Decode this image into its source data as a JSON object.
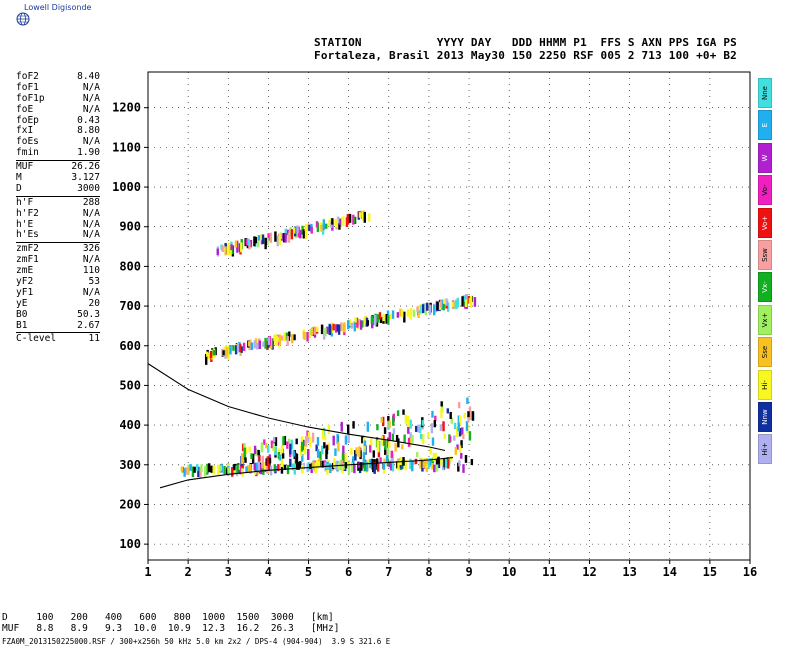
{
  "header": {
    "logo_text": "Lowell Digisonde",
    "line1": "STATION           YYYY DAY   DDD HHMM P1  FFS S AXN PPS IGA PS",
    "line2": "Fortaleza, Brasil 2013 May30 150 2250 RSF 005 2 713 100 +0+ B2"
  },
  "params": {
    "group1": [
      {
        "label": "foF2",
        "value": "8.40"
      },
      {
        "label": "foF1",
        "value": "N/A"
      },
      {
        "label": "foF1p",
        "value": "N/A"
      },
      {
        "label": "foE",
        "value": "N/A"
      },
      {
        "label": "foEp",
        "value": "0.43"
      },
      {
        "label": "fxI",
        "value": "8.80"
      },
      {
        "label": "foEs",
        "value": "N/A"
      },
      {
        "label": "fmin",
        "value": "1.90"
      }
    ],
    "group2": [
      {
        "label": "MUF",
        "value": "26.26"
      },
      {
        "label": "M",
        "value": "3.127"
      },
      {
        "label": "D",
        "value": "3000"
      }
    ],
    "group3": [
      {
        "label": "h'F",
        "value": "288"
      },
      {
        "label": "h'F2",
        "value": "N/A"
      },
      {
        "label": "h'E",
        "value": "N/A"
      },
      {
        "label": "h'Es",
        "value": "N/A"
      }
    ],
    "group4": [
      {
        "label": "zmF2",
        "value": "326"
      },
      {
        "label": "zmF1",
        "value": "N/A"
      },
      {
        "label": "zmE",
        "value": "110"
      },
      {
        "label": "yF2",
        "value": "53"
      },
      {
        "label": "yF1",
        "value": "N/A"
      },
      {
        "label": "yE",
        "value": "20"
      },
      {
        "label": "B0",
        "value": "50.3"
      },
      {
        "label": "B1",
        "value": "2.67"
      }
    ],
    "group5": [
      {
        "label": "C-level",
        "value": "11"
      }
    ]
  },
  "legend": [
    {
      "label": "Nne",
      "color": "#40e0e0"
    },
    {
      "label": "E",
      "color": "#20b0f0"
    },
    {
      "label": "W",
      "color": "#b020d0"
    },
    {
      "label": "Vo-",
      "color": "#f020c0"
    },
    {
      "label": "Vo+",
      "color": "#f01010"
    },
    {
      "label": "Ssw",
      "color": "#f8a0a0"
    },
    {
      "label": "Vx-",
      "color": "#10b020"
    },
    {
      "label": "Vx+",
      "color": "#a0f060"
    },
    {
      "label": "Sse",
      "color": "#f8c020"
    },
    {
      "label": "Hi-",
      "color": "#f8f820"
    },
    {
      "label": "Nnw",
      "color": "#1030a0"
    },
    {
      "label": "Hi+",
      "color": "#b0b0f0"
    }
  ],
  "chart_data": {
    "type": "scatter",
    "title": "",
    "xlabel": "",
    "ylabel": "",
    "xlim": [
      1,
      16
    ],
    "ylim": [
      60,
      1290
    ],
    "xticks": [
      1,
      2,
      3,
      4,
      5,
      6,
      7,
      8,
      9,
      10,
      11,
      12,
      13,
      14,
      15,
      16
    ],
    "yticks": [
      100,
      200,
      300,
      400,
      500,
      600,
      700,
      800,
      900,
      1000,
      1100,
      1200
    ],
    "grid": "dotted",
    "profile_curves": {
      "upper": [
        [
          1.0,
          555
        ],
        [
          2.0,
          490
        ],
        [
          3.0,
          447
        ],
        [
          4.0,
          418
        ],
        [
          5.0,
          395
        ],
        [
          6.0,
          377
        ],
        [
          7.0,
          362
        ],
        [
          8.0,
          345
        ],
        [
          8.4,
          336
        ]
      ],
      "lower": [
        [
          1.3,
          242
        ],
        [
          2.0,
          262
        ],
        [
          3.0,
          276
        ],
        [
          4.0,
          286
        ],
        [
          5.0,
          293
        ],
        [
          6.0,
          300
        ],
        [
          7.0,
          306
        ],
        [
          8.0,
          312
        ],
        [
          8.6,
          318
        ]
      ]
    },
    "traces": [
      {
        "name": "F-layer trace",
        "x0": 1.8,
        "x1": 8.6,
        "y0": 296,
        "y1": 316,
        "spread": 12,
        "density": 210
      },
      {
        "name": "Spread F",
        "x0": 3.3,
        "x1": 9.1,
        "y0": 300,
        "y1": 480,
        "spread": 70,
        "density": 260
      },
      {
        "name": "Second hop",
        "x0": 2.4,
        "x1": 9.2,
        "y0": 585,
        "y1": 730,
        "spread": 14,
        "density": 210
      },
      {
        "name": "Third hop",
        "x0": 2.7,
        "x1": 6.5,
        "y0": 848,
        "y1": 940,
        "spread": 14,
        "density": 120
      }
    ]
  },
  "footer": {
    "d_row": "D     100   200   400   600   800  1000  1500  3000   [km]",
    "muf_row": "MUF   8.8   8.9   9.3  10.0  10.9  12.3  16.2  26.3   [MHz]",
    "file_row": "FZA0M_2013150225000.RSF / 300+x256h 50 kHz 5.0 km 2x2 / DPS-4 (904-904)  3.9 S 321.6 E"
  }
}
